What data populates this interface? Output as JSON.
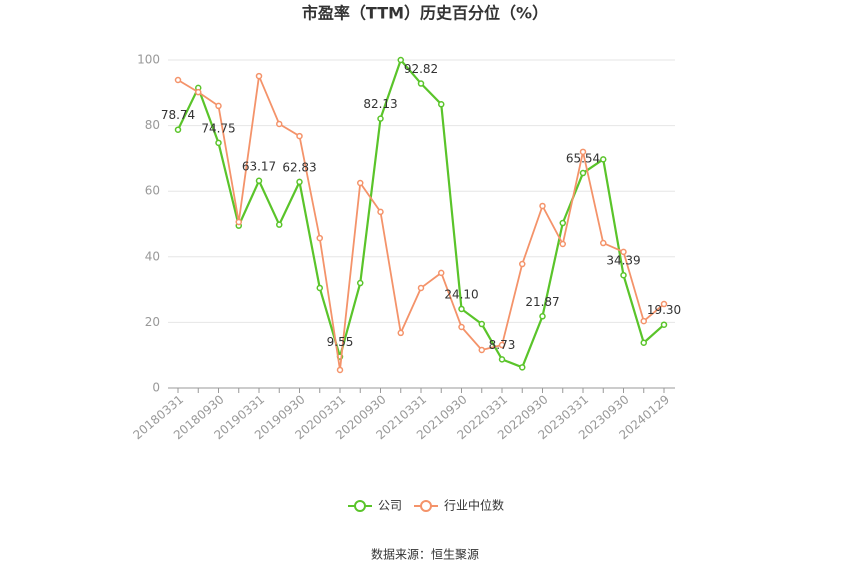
{
  "chart_data": {
    "type": "line",
    "title": "市盈率（TTM）历史百分位（%）",
    "categories": [
      "20180331",
      null,
      "20180930",
      null,
      "20190331",
      null,
      "20190930",
      null,
      "20200331",
      null,
      "20200930",
      null,
      "20210331",
      null,
      "20210930",
      null,
      "20220331",
      null,
      "20220930",
      null,
      "20230331",
      null,
      "20230930",
      null,
      "20240129"
    ],
    "series": [
      {
        "name": "公司",
        "color": "#5ac42a",
        "values": [
          78.74,
          91.5,
          74.75,
          49.5,
          63.17,
          49.8,
          62.83,
          30.5,
          9.55,
          32,
          82.13,
          100,
          92.82,
          86.5,
          24.1,
          19.5,
          8.73,
          6.3,
          21.87,
          50.3,
          65.54,
          69.7,
          34.39,
          13.8,
          19.3
        ],
        "value_labels": [
          "78.74",
          null,
          "74.75",
          null,
          "63.17",
          null,
          "62.83",
          null,
          "9.55",
          null,
          "82.13",
          null,
          "92.82",
          null,
          "24.10",
          null,
          "8.73",
          null,
          "21.87",
          null,
          "65.54",
          null,
          "34.39",
          null,
          "19.30"
        ]
      },
      {
        "name": "行业中位数",
        "color": "#f4936a",
        "values": [
          93.9,
          90.2,
          86,
          50.6,
          95.1,
          80.5,
          76.8,
          45.7,
          5.5,
          62.5,
          53.7,
          16.8,
          30.5,
          35.1,
          18.6,
          11.6,
          13.1,
          37.8,
          55.5,
          43.9,
          72,
          44.2,
          41.5,
          20.4,
          25.6
        ]
      }
    ],
    "ylim": [
      0,
      100
    ],
    "yticks": [
      0,
      20,
      40,
      60,
      80,
      100
    ],
    "grid": true,
    "source": "数据来源：恒生聚源"
  }
}
